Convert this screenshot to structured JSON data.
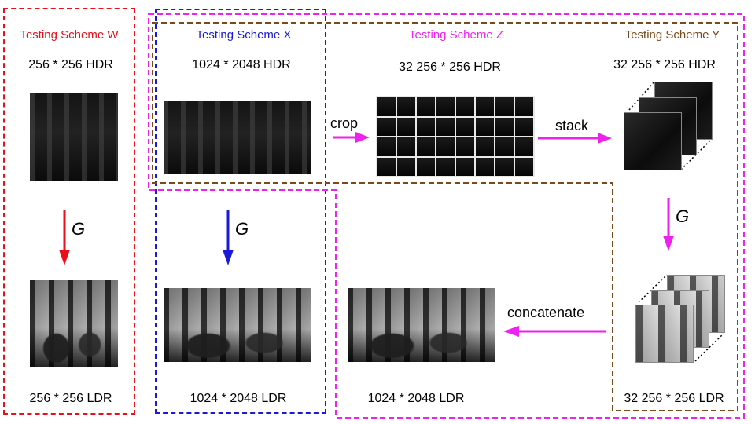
{
  "colors": {
    "scheme_w": "#e8101a",
    "scheme_x": "#1a1ad6",
    "scheme_z": "#ee22ee",
    "scheme_y": "#7a4a1a",
    "arrow_g_w": "#e8101a",
    "arrow_g_x": "#1a1ad6",
    "arrow_magenta": "#ee22ee"
  },
  "schemes": {
    "w": {
      "title": "Testing Scheme W",
      "input_label": "256 * 256 HDR",
      "output_label": "256 * 256 LDR"
    },
    "x": {
      "title": "Testing Scheme X",
      "input_label": "1024 * 2048 HDR",
      "output_label": "1024 * 2048 LDR"
    },
    "z": {
      "title": "Testing Scheme Z",
      "crop_result_label": "32 256 * 256 HDR",
      "final_label": "1024 * 2048 LDR"
    },
    "y": {
      "title": "Testing Scheme Y",
      "stack_label": "32 256 * 256 HDR",
      "output_label": "32 256 * 256 LDR"
    }
  },
  "operations": {
    "crop": "crop",
    "stack": "stack",
    "concatenate": "concatenate",
    "generator": "G"
  },
  "icons": [
    "arrow-down-icon",
    "arrow-right-icon",
    "arrow-left-icon"
  ]
}
